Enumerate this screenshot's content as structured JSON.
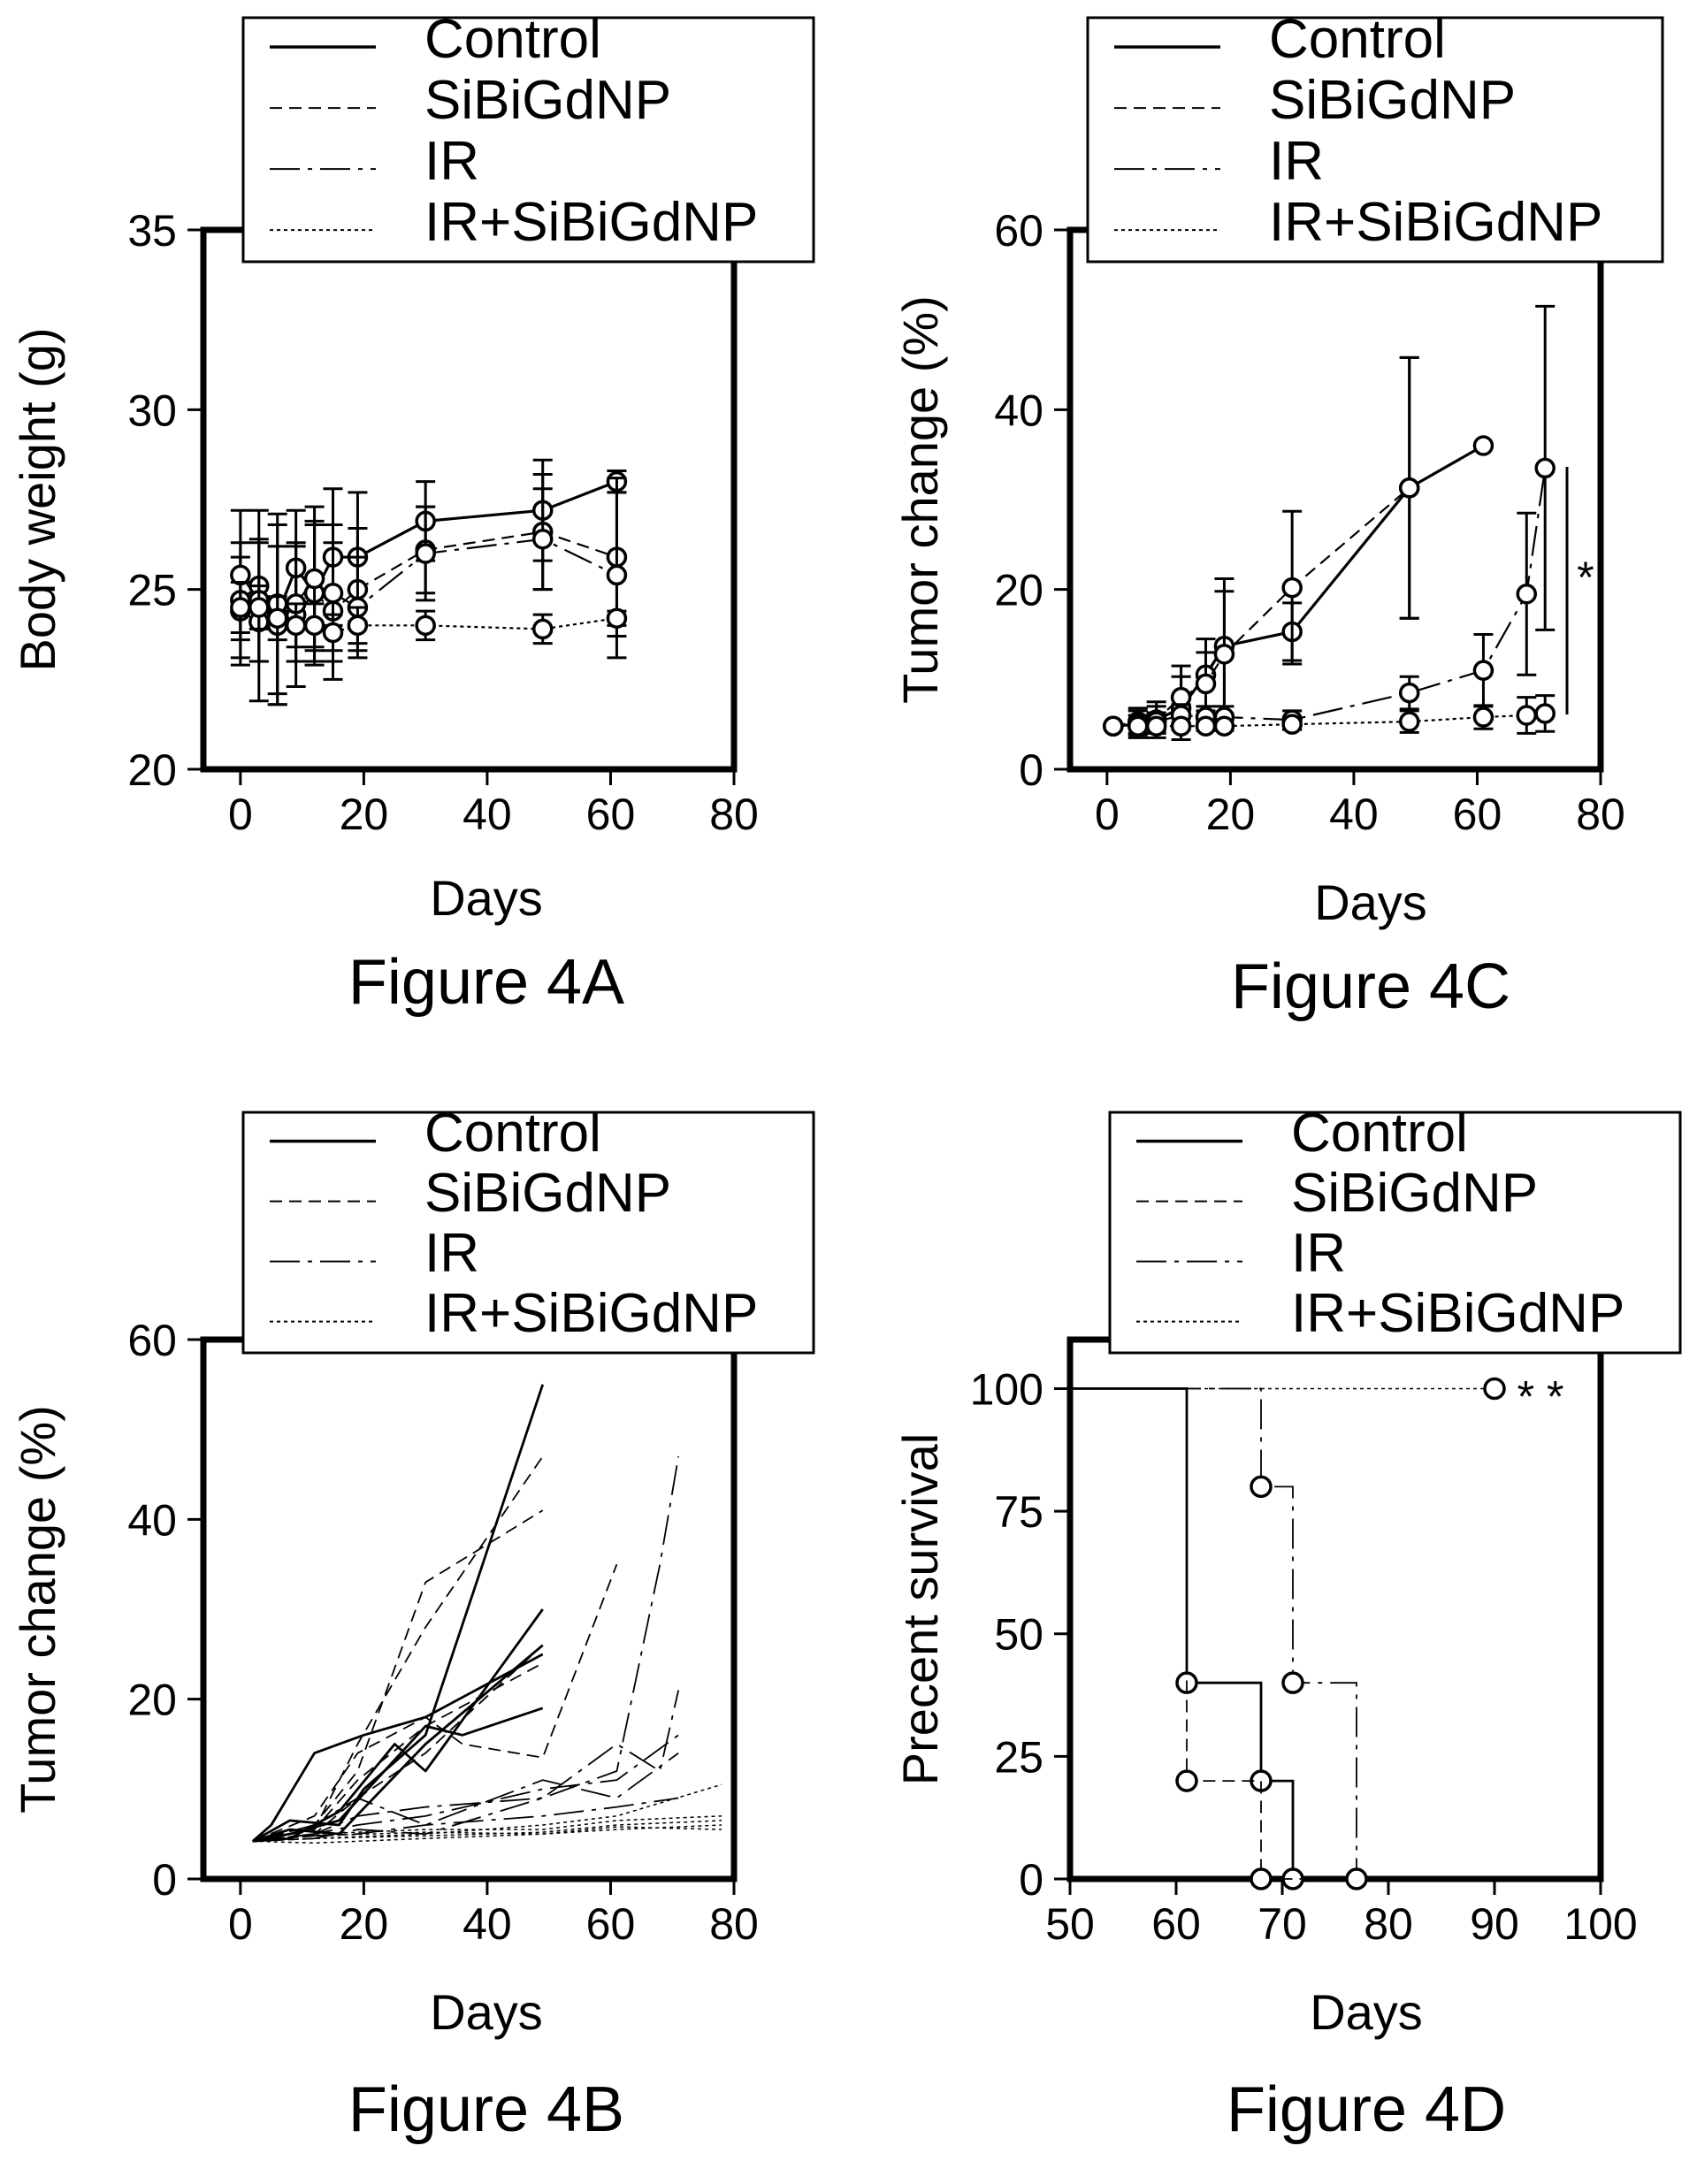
{
  "style": {
    "ink": "#000000",
    "background": "#ffffff"
  },
  "chart_data": [
    {
      "id": "4A",
      "type": "line",
      "caption": "Figure  4A",
      "xlabel": "Days",
      "ylabel": "Body weight (g)",
      "xlim": [
        -6,
        80
      ],
      "ylim": [
        20,
        35
      ],
      "xticks": [
        0,
        20,
        40,
        60,
        80
      ],
      "yticks": [
        20,
        25,
        30,
        35
      ],
      "grid": false,
      "legend_position": "top",
      "error_bars": true,
      "series": [
        {
          "name": "Control",
          "dash": "solid",
          "x": [
            0,
            3,
            6,
            9,
            12,
            15,
            19,
            30,
            49,
            61
          ],
          "y": [
            24.7,
            25.1,
            24.3,
            25.6,
            24.9,
            25.9,
            25.9,
            26.9,
            27.2,
            28.0
          ],
          "err": [
            1.6,
            2.1,
            2.5,
            1.6,
            1.9,
            1.9,
            1.8,
            1.1,
            1.4,
            0.3
          ]
        },
        {
          "name": "SiBiGdNP",
          "dash": "dashed",
          "x": [
            0,
            3,
            6,
            9,
            12,
            15,
            19,
            30,
            49,
            61
          ],
          "y": [
            24.4,
            24.1,
            24.6,
            24.3,
            24.9,
            24.4,
            25.0,
            26.1,
            26.6,
            25.9
          ],
          "err": [
            1.5,
            2.2,
            2.5,
            2.0,
            2.0,
            1.9,
            1.7,
            1.2,
            1.6,
            2.2
          ]
        },
        {
          "name": "IR",
          "dash": "dashdot",
          "x": [
            0,
            3,
            6,
            9,
            12,
            15,
            19,
            30,
            49,
            61
          ],
          "y": [
            25.4,
            24.7,
            24.0,
            24.6,
            25.3,
            24.9,
            24.5,
            26.0,
            26.4,
            25.4
          ],
          "err": [
            1.8,
            1.7,
            2.2,
            1.6,
            2.0,
            1.9,
            1.4,
            1.3,
            1.4,
            2.3
          ]
        },
        {
          "name": "IR+SiBiGdNP",
          "dash": "dotted",
          "x": [
            0,
            3,
            6,
            9,
            12,
            15,
            19,
            30,
            49,
            61
          ],
          "y": [
            24.5,
            24.5,
            24.2,
            24.0,
            24.0,
            23.8,
            24.0,
            24.0,
            23.9,
            24.2
          ],
          "err": [
            0.7,
            0.6,
            0.6,
            0.6,
            0.6,
            0.5,
            0.5,
            0.4,
            0.4,
            0.2
          ]
        }
      ]
    },
    {
      "id": "4C",
      "type": "line",
      "caption": "Figure  4C",
      "xlabel": "Days",
      "ylabel": "Tumor change (%)",
      "xlim": [
        -6,
        80
      ],
      "ylim": [
        0,
        60
      ],
      "xticks": [
        0,
        20,
        40,
        60,
        80
      ],
      "yticks": [
        0,
        20,
        40,
        60
      ],
      "grid": false,
      "legend_position": "top",
      "error_bars": true,
      "annotation": "*",
      "series": [
        {
          "name": "Control",
          "dash": "solid",
          "x": [
            1,
            5,
            8,
            12,
            16,
            19,
            30,
            49,
            61
          ],
          "y": [
            4.8,
            5.0,
            5.5,
            6.8,
            10.5,
            13.7,
            15.3,
            31.3,
            36.0
          ],
          "err": [
            0,
            1.5,
            2.0,
            3.5,
            4.0,
            7.5,
            3.2,
            14.5,
            0
          ]
        },
        {
          "name": "SiBiGdNP",
          "dash": "dashed",
          "x": [
            1,
            5,
            8,
            12,
            16,
            19,
            30,
            49
          ],
          "y": [
            4.8,
            5.3,
            5.5,
            8.0,
            9.5,
            12.8,
            20.2,
            31.3
          ],
          "err": [
            0,
            1.5,
            1.5,
            3.5,
            3.5,
            7.0,
            8.5,
            14.5
          ]
        },
        {
          "name": "IR",
          "dash": "dashdot",
          "x": [
            1,
            5,
            8,
            12,
            16,
            19,
            30,
            49,
            61,
            68,
            71
          ],
          "y": [
            4.8,
            5.0,
            5.3,
            6.0,
            5.8,
            5.8,
            5.5,
            8.5,
            11.0,
            19.5,
            33.5
          ],
          "err": [
            0,
            1.0,
            1.0,
            1.2,
            1.2,
            1.2,
            1.0,
            1.8,
            4.0,
            9.0,
            18.0
          ]
        },
        {
          "name": "IR+SiBiGdNP",
          "dash": "dotted",
          "x": [
            1,
            5,
            8,
            12,
            16,
            19,
            30,
            49,
            61,
            68,
            71
          ],
          "y": [
            4.8,
            4.8,
            4.8,
            4.8,
            4.8,
            4.8,
            5.0,
            5.3,
            5.8,
            6.0,
            6.2
          ],
          "err": [
            0,
            0.3,
            0.4,
            0.4,
            0.5,
            0.5,
            0.6,
            1.2,
            1.3,
            2.0,
            2.0
          ]
        }
      ]
    },
    {
      "id": "4B",
      "type": "line",
      "caption": "Figure  4B",
      "xlabel": "Days",
      "ylabel": "Tumor change (%)",
      "xlim": [
        -6,
        80
      ],
      "ylim": [
        0,
        60
      ],
      "xticks": [
        0,
        20,
        40,
        60,
        80
      ],
      "yticks": [
        0,
        20,
        40,
        60
      ],
      "grid": false,
      "legend_position": "top",
      "individual_curves": true,
      "series": [
        {
          "name": "Control",
          "dash": "solid",
          "width": 2.8,
          "lines": [
            {
              "x": [
                2,
                5,
                12,
                20,
                30,
                49
              ],
              "y": [
                4.2,
                6.0,
                14.0,
                16.0,
                18.0,
                25.0
              ]
            },
            {
              "x": [
                2,
                8,
                16,
                20,
                30,
                49
              ],
              "y": [
                4.2,
                6.5,
                6.0,
                10.0,
                16.0,
                55.0
              ]
            },
            {
              "x": [
                2,
                8,
                16,
                25,
                30,
                49
              ],
              "y": [
                4.2,
                4.5,
                7.5,
                15.0,
                12.0,
                30.0
              ]
            },
            {
              "x": [
                2,
                8,
                16,
                30,
                36,
                49
              ],
              "y": [
                4.2,
                5.0,
                6.5,
                17.0,
                16.0,
                19.0
              ]
            },
            {
              "x": [
                2,
                8,
                16,
                30,
                49
              ],
              "y": [
                4.2,
                5.5,
                5.0,
                15.0,
                26.0
              ]
            }
          ]
        },
        {
          "name": "SiBiGdNP",
          "dash": "dashed",
          "width": 1.8,
          "lines": [
            {
              "x": [
                2,
                12,
                19,
                30,
                49
              ],
              "y": [
                4.2,
                6.0,
                12.0,
                33.0,
                41.0
              ]
            },
            {
              "x": [
                2,
                12,
                19,
                30,
                49
              ],
              "y": [
                4.2,
                5.5,
                15.0,
                28.0,
                47.0
              ]
            },
            {
              "x": [
                2,
                12,
                19,
                30,
                36,
                49,
                61
              ],
              "y": [
                4.2,
                7.0,
                14.0,
                18.0,
                15.0,
                13.5,
                35.0
              ]
            },
            {
              "x": [
                2,
                12,
                19,
                30,
                49
              ],
              "y": [
                4.2,
                5.0,
                9.0,
                14.0,
                26.0
              ]
            },
            {
              "x": [
                2,
                12,
                19,
                30,
                49
              ],
              "y": [
                4.2,
                5.5,
                11.0,
                17.0,
                24.0
              ]
            }
          ]
        },
        {
          "name": "IR",
          "dash": "dashdot",
          "width": 1.8,
          "lines": [
            {
              "x": [
                2,
                12,
                19,
                30,
                49,
                61,
                68,
                71
              ],
              "y": [
                4.2,
                5.0,
                7.0,
                8.0,
                9.0,
                12.0,
                35.0,
                47.0
              ]
            },
            {
              "x": [
                2,
                12,
                19,
                30,
                49,
                61,
                68,
                71
              ],
              "y": [
                4.2,
                4.5,
                5.5,
                5.0,
                9.0,
                15.0,
                12.0,
                21.0
              ]
            },
            {
              "x": [
                2,
                12,
                19,
                30,
                49,
                61,
                71
              ],
              "y": [
                4.2,
                6.0,
                9.0,
                6.0,
                11.0,
                9.0,
                14.0
              ]
            },
            {
              "x": [
                2,
                12,
                19,
                30,
                49,
                61,
                71
              ],
              "y": [
                4.2,
                5.0,
                6.0,
                7.0,
                10.0,
                11.0,
                16.0
              ]
            },
            {
              "x": [
                2,
                12,
                19,
                30,
                49,
                61,
                71
              ],
              "y": [
                4.2,
                4.8,
                5.0,
                6.0,
                7.0,
                8.0,
                9.0
              ]
            }
          ]
        },
        {
          "name": "IR+SiBiGdNP",
          "dash": "dotted",
          "width": 1.5,
          "lines": [
            {
              "x": [
                2,
                12,
                30,
                49,
                61,
                78
              ],
              "y": [
                4.2,
                4.5,
                5.0,
                6.0,
                7.0,
                10.5
              ]
            },
            {
              "x": [
                2,
                12,
                30,
                49,
                61,
                78
              ],
              "y": [
                4.2,
                5.0,
                5.5,
                5.5,
                6.5,
                7.0
              ]
            },
            {
              "x": [
                2,
                12,
                30,
                49,
                61,
                78
              ],
              "y": [
                4.2,
                4.0,
                4.5,
                5.0,
                5.5,
                6.0
              ]
            },
            {
              "x": [
                2,
                12,
                30,
                49,
                61,
                78
              ],
              "y": [
                4.2,
                4.5,
                4.8,
                5.2,
                6.0,
                6.5
              ]
            },
            {
              "x": [
                2,
                12,
                30,
                49,
                61,
                78
              ],
              "y": [
                4.2,
                4.8,
                5.2,
                5.0,
                5.8,
                5.5
              ]
            }
          ]
        }
      ]
    },
    {
      "id": "4D",
      "type": "line",
      "step": true,
      "caption": "Figure  4D",
      "xlabel": "Days",
      "ylabel": "Precent survival",
      "xlim": [
        50,
        100
      ],
      "ylim": [
        0,
        110
      ],
      "xticks": [
        50,
        60,
        70,
        80,
        90,
        100
      ],
      "yticks": [
        0,
        25,
        50,
        75,
        100
      ],
      "grid": false,
      "legend_position": "top",
      "annotation": "* *",
      "series": [
        {
          "name": "Control",
          "dash": "solid",
          "width": 2.8,
          "x": [
            50,
            61,
            68,
            71
          ],
          "y": [
            100,
            40,
            20,
            0
          ],
          "markers": [
            [
              61,
              40
            ],
            [
              68,
              20
            ],
            [
              71,
              0
            ]
          ]
        },
        {
          "name": "SiBiGdNP",
          "dash": "dashed",
          "width": 1.8,
          "x": [
            50,
            61,
            68
          ],
          "y": [
            100,
            20,
            0
          ],
          "markers": [
            [
              61,
              20
            ],
            [
              68,
              0
            ]
          ]
        },
        {
          "name": "IR",
          "dash": "dashdot",
          "width": 1.8,
          "x": [
            50,
            68,
            71,
            77
          ],
          "y": [
            100,
            80,
            40,
            0
          ],
          "markers": [
            [
              68,
              80
            ],
            [
              71,
              40
            ],
            [
              77,
              0
            ]
          ]
        },
        {
          "name": "IR+SiBiGdNP",
          "dash": "dotted",
          "width": 1.5,
          "x": [
            50,
            90
          ],
          "y": [
            100,
            100
          ],
          "markers": [
            [
              90,
              100
            ]
          ]
        }
      ]
    }
  ]
}
